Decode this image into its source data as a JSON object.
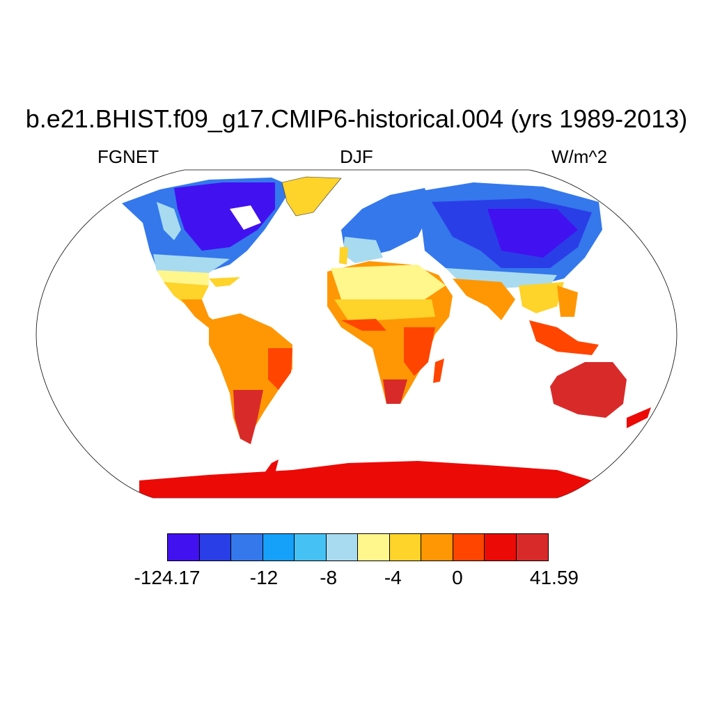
{
  "header": {
    "title": "b.e21.BHIST.f09_g17.CMIP6-historical.004 (yrs 1989-2013)",
    "left_label": "FGNET",
    "center_label": "DJF",
    "right_label": "W/m^2"
  },
  "map": {
    "projection": "Robinson",
    "variable": "FGNET",
    "season": "DJF",
    "units": "W/m^2"
  },
  "colorbar": {
    "colors": [
      "#4211f0",
      "#2a3ee8",
      "#3478ec",
      "#15a0fa",
      "#46c1f4",
      "#a8dbf0",
      "#fff68c",
      "#fed32a",
      "#ff9704",
      "#ff4500",
      "#ec0a06",
      "#d92a2a"
    ],
    "tick_labels": [
      "-124.17",
      "-12",
      "-8",
      "-4",
      "0",
      "41.59"
    ]
  }
}
